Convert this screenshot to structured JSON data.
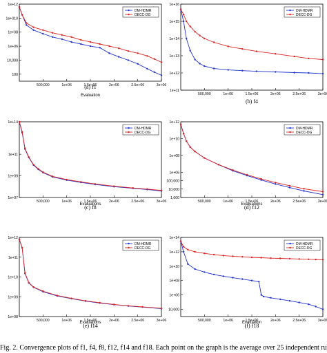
{
  "caption": "Fig. 2. Convergence plots of f1, f4, f8, f12, f14 and f18. Each point on the graph is the average over 25 independent runs",
  "colors": {
    "dm_hdmr": "#2233cc",
    "decc_dg": "#dd2222"
  },
  "chart_data": [
    {
      "type": "line",
      "sub_label": "(a) f1",
      "yscale": "log",
      "ylim": [
        10,
        1000000000000.0
      ],
      "yticks": [
        {
          "v": 1000000000000.0,
          "label": "1e+12"
        },
        {
          "v": 10000000000.0,
          "label": "1e+010"
        },
        {
          "v": 100000000.0,
          "label": "1e+08"
        },
        {
          "v": 1000000.0,
          "label": "1e+06"
        },
        {
          "v": 10000.0,
          "label": "10,000"
        },
        {
          "v": 100,
          "label": "100"
        }
      ],
      "xlim": [
        0,
        3000000
      ],
      "xticks": [
        {
          "v": 500000,
          "label": "500,000"
        },
        {
          "v": 1000000,
          "label": "1e+06"
        },
        {
          "v": 1500000,
          "label": "1.5e+06"
        },
        {
          "v": 2000000,
          "label": "2e+06"
        },
        {
          "v": 2500000,
          "label": "2.5e+06"
        },
        {
          "v": 3000000,
          "label": "3e+06"
        }
      ],
      "xlabel": "Evaluation",
      "legend_position": "top-right",
      "series": [
        {
          "name": "DM-HDMR",
          "x": [
            0,
            60000,
            150000,
            300000,
            500000,
            700000,
            900000,
            1100000,
            1300000,
            1500000,
            1700000,
            1900000,
            2100000,
            2300000,
            2500000,
            2700000,
            2850000,
            3000000
          ],
          "y": [
            400000000000.0,
            30000000000.0,
            1000000000.0,
            200000000.0,
            60000000.0,
            20000000.0,
            10000000.0,
            4000000.0,
            2000000.0,
            1000000.0,
            600000.0,
            100000.0,
            30000.0,
            10000.0,
            3000.0,
            600,
            200,
            70
          ]
        },
        {
          "name": "DECC-DG",
          "x": [
            0,
            60000,
            150000,
            300000,
            500000,
            700000,
            900000,
            1100000,
            1300000,
            1500000,
            1700000,
            1900000,
            2100000,
            2300000,
            2500000,
            2700000,
            2850000,
            3000000
          ],
          "y": [
            400000000000.0,
            30000000000.0,
            2000000000.0,
            500000000.0,
            200000000.0,
            80000000.0,
            40000000.0,
            20000000.0,
            8000000.0,
            4000000.0,
            2000000.0,
            1000000.0,
            500000.0,
            200000.0,
            100000.0,
            40000.0,
            15000.0,
            5000.0
          ]
        }
      ]
    },
    {
      "type": "line",
      "sub_label": "(b) f4",
      "yscale": "log",
      "ylim": [
        100000000000.0,
        1e+16
      ],
      "yticks": [
        {
          "v": 1e+16,
          "label": "1e+16"
        },
        {
          "v": 1000000000000000.0,
          "label": "1e+15"
        },
        {
          "v": 100000000000000.0,
          "label": "1e+14"
        },
        {
          "v": 10000000000000.0,
          "label": "1e+13"
        },
        {
          "v": 1000000000000.0,
          "label": "1e+12"
        },
        {
          "v": 100000000000.0,
          "label": "1e+11"
        }
      ],
      "xlim": [
        0,
        3000000
      ],
      "xticks": [
        {
          "v": 500000,
          "label": "500,000"
        },
        {
          "v": 1000000,
          "label": "1e+06"
        },
        {
          "v": 1500000,
          "label": "1.5e+06"
        },
        {
          "v": 2000000,
          "label": "2e+06"
        },
        {
          "v": 2500000,
          "label": "2.5e+06"
        },
        {
          "v": 3000000,
          "label": "3e+06"
        }
      ],
      "xlabel": "",
      "legend_position": "top-right",
      "series": [
        {
          "name": "DM-HDMR",
          "x": [
            0,
            60000,
            120000,
            200000,
            300000,
            400000,
            500000,
            700000,
            1000000,
            1300000,
            1600000,
            2000000,
            2400000,
            2700000,
            3000000
          ],
          "y": [
            5000000000000000.0,
            1000000000000000.0,
            100000000000000.0,
            20000000000000.0,
            6000000000000.0,
            3500000000000.0,
            2500000000000.0,
            1800000000000.0,
            1500000000000.0,
            1350000000000.0,
            1250000000000.0,
            1150000000000.0,
            1050000000000.0,
            1000000000000.0,
            900000000000.0
          ]
        },
        {
          "name": "DECC-DG",
          "x": [
            0,
            60000,
            120000,
            200000,
            300000,
            400000,
            500000,
            700000,
            1000000,
            1300000,
            1600000,
            2000000,
            2400000,
            2700000,
            3000000
          ],
          "y": [
            5000000000000000.0,
            2500000000000000.0,
            1000000000000000.0,
            500000000000000.0,
            250000000000000.0,
            150000000000000.0,
            100000000000000.0,
            60000000000000.0,
            35000000000000.0,
            25000000000000.0,
            18000000000000.0,
            13000000000000.0,
            9000000000000.0,
            7000000000000.0,
            6000000000000.0
          ]
        }
      ]
    },
    {
      "type": "line",
      "sub_label": "(c) f8",
      "yscale": "log",
      "ylim": [
        10000000.0,
        100000000000000.0
      ],
      "yticks": [
        {
          "v": 100000000000000.0,
          "label": "1e+14"
        },
        {
          "v": 100000000000.0,
          "label": "1e+11"
        },
        {
          "v": 1000000000.0,
          "label": "1e+09"
        },
        {
          "v": 10000000.0,
          "label": "1e+07"
        }
      ],
      "xlim": [
        0,
        3000000
      ],
      "xticks": [
        {
          "v": 500000,
          "label": "500,000"
        },
        {
          "v": 1000000,
          "label": "1e+06"
        },
        {
          "v": 1500000,
          "label": "1.5e+06"
        },
        {
          "v": 2000000,
          "label": "2e+06"
        },
        {
          "v": 2500000,
          "label": "2.5e+06"
        },
        {
          "v": 3000000,
          "label": "3e+06"
        }
      ],
      "xlabel": "Evaluations",
      "legend_position": "top-right",
      "series": [
        {
          "name": "DM-HDMR",
          "x": [
            0,
            60000,
            120000,
            200000,
            300000,
            400000,
            500000,
            700000,
            1000000,
            1300000,
            1600000,
            2000000,
            2400000,
            2700000,
            3000000
          ],
          "y": [
            100000000000000.0,
            10000000000000.0,
            300000000000.0,
            50000000000.0,
            10000000000.0,
            4000000000.0,
            2000000000.0,
            800000000.0,
            400000000.0,
            250000000.0,
            160000000.0,
            100000000.0,
            70000000.0,
            55000000.0,
            40000000.0
          ]
        },
        {
          "name": "DECC-DG",
          "x": [
            0,
            60000,
            120000,
            200000,
            300000,
            400000,
            500000,
            700000,
            1000000,
            1300000,
            1600000,
            2000000,
            2400000,
            2700000,
            3000000
          ],
          "y": [
            100000000000000.0,
            12000000000000.0,
            350000000000.0,
            55000000000.0,
            11000000000.0,
            4500000000.0,
            2200000000.0,
            900000000.0,
            450000000.0,
            280000000.0,
            180000000.0,
            110000000.0,
            75000000.0,
            60000000.0,
            45000000.0
          ]
        }
      ]
    },
    {
      "type": "line",
      "sub_label": "(d) f12",
      "yscale": "log",
      "ylim": [
        1000,
        1000000000000.0
      ],
      "yticks": [
        {
          "v": 1000000000000.0,
          "label": "1e+12"
        },
        {
          "v": 10000000000.0,
          "label": "1e+10"
        },
        {
          "v": 100000000.0,
          "label": "1e+08"
        },
        {
          "v": 1000000.0,
          "label": "1e+06"
        },
        {
          "v": 100000.0,
          "label": "100,000"
        },
        {
          "v": 10000.0,
          "label": "10,000"
        },
        {
          "v": 1000,
          "label": "1,000"
        }
      ],
      "xlim": [
        0,
        3000000
      ],
      "xticks": [
        {
          "v": 500000,
          "label": "500,000"
        },
        {
          "v": 1000000,
          "label": "1e+06"
        },
        {
          "v": 1500000,
          "label": "1.5e+06"
        },
        {
          "v": 2000000,
          "label": "2e+06"
        },
        {
          "v": 2500000,
          "label": "2.5e+06"
        },
        {
          "v": 3000000,
          "label": "3e+06"
        }
      ],
      "xlabel": "Evaluations",
      "legend_position": "top-right",
      "series": [
        {
          "name": "DM-HDMR",
          "x": [
            0,
            60000,
            120000,
            200000,
            300000,
            500000,
            800000,
            1100000,
            1400000,
            1700000,
            2000000,
            2300000,
            2600000,
            3000000
          ],
          "y": [
            500000000000.0,
            40000000000.0,
            5000000000.0,
            1000000000.0,
            300000000.0,
            50000000.0,
            8000000.0,
            1500000.0,
            400000.0,
            120000.0,
            40000.0,
            15000.0,
            6000.0,
            2200.0
          ]
        },
        {
          "name": "DECC-DG",
          "x": [
            0,
            60000,
            120000,
            200000,
            300000,
            500000,
            800000,
            1100000,
            1400000,
            1700000,
            2000000,
            2300000,
            2600000,
            3000000
          ],
          "y": [
            500000000000.0,
            40000000000.0,
            5000000000.0,
            1000000000.0,
            300000000.0,
            50000000.0,
            8000000.0,
            1800000.0,
            500000.0,
            160000.0,
            60000.0,
            25000.0,
            11000.0,
            5000.0
          ]
        }
      ]
    },
    {
      "type": "line",
      "sub_label": "(e) f14",
      "yscale": "log",
      "ylim": [
        100000000.0,
        1000000000000.0
      ],
      "yticks": [
        {
          "v": 1000000000000.0,
          "label": "1e+12"
        },
        {
          "v": 100000000000.0,
          "label": "1e+11"
        },
        {
          "v": 10000000000.0,
          "label": "1e+10"
        },
        {
          "v": 1000000000.0,
          "label": "1e+09"
        },
        {
          "v": 100000000.0,
          "label": "1e+08"
        }
      ],
      "xlim": [
        0,
        3000000
      ],
      "xticks": [
        {
          "v": 500000,
          "label": "500,000"
        },
        {
          "v": 1000000,
          "label": "1e+06"
        },
        {
          "v": 1500000,
          "label": "1.5e+06"
        },
        {
          "v": 2000000,
          "label": "2e+06"
        },
        {
          "v": 2500000,
          "label": "2.5e+06"
        },
        {
          "v": 3000000,
          "label": "3e+06"
        }
      ],
      "xlabel": "Evaluations",
      "legend_position": "top-right",
      "series": [
        {
          "name": "DM-HDMR",
          "x": [
            0,
            60000,
            120000,
            200000,
            300000,
            500000,
            800000,
            1100000,
            1400000,
            1700000,
            2000000,
            2300000,
            2600000,
            3000000
          ],
          "y": [
            800000000000.0,
            300000000000.0,
            15000000000.0,
            5000000000.0,
            3000000000.0,
            1800000000.0,
            1100000000.0,
            800000000.0,
            600000000.0,
            480000000.0,
            400000000.0,
            340000000.0,
            300000000.0,
            250000000.0
          ]
        },
        {
          "name": "DECC-DG",
          "x": [
            0,
            60000,
            120000,
            200000,
            300000,
            500000,
            800000,
            1100000,
            1400000,
            1700000,
            2000000,
            2300000,
            2600000,
            3000000
          ],
          "y": [
            800000000000.0,
            300000000000.0,
            16000000000.0,
            5200000000.0,
            3100000000.0,
            1900000000.0,
            1150000000.0,
            830000000.0,
            620000000.0,
            500000000.0,
            410000000.0,
            350000000.0,
            310000000.0,
            260000000.0
          ]
        }
      ]
    },
    {
      "type": "line",
      "sub_label": "(f) f18",
      "yscale": "log",
      "ylim": [
        1000,
        100000000000000.0
      ],
      "yticks": [
        {
          "v": 100000000000000.0,
          "label": "1e+14"
        },
        {
          "v": 1000000000000.0,
          "label": "1e+12"
        },
        {
          "v": 10000000000.0,
          "label": "1e+10"
        },
        {
          "v": 100000000.0,
          "label": "1e+08"
        },
        {
          "v": 1000000.0,
          "label": "1e+06"
        },
        {
          "v": 10000.0,
          "label": "10,000"
        }
      ],
      "xlim": [
        0,
        3000000
      ],
      "xticks": [
        {
          "v": 500000,
          "label": "500,000"
        },
        {
          "v": 1000000,
          "label": "1e+06"
        },
        {
          "v": 1500000,
          "label": "1.5e+06"
        },
        {
          "v": 2000000,
          "label": "2e+06"
        },
        {
          "v": 2500000,
          "label": "2.5e+06"
        },
        {
          "v": 3000000,
          "label": "3e+06"
        }
      ],
      "xlabel": "Evaluation",
      "legend_position": "top-right",
      "series": [
        {
          "name": "DM-HDMR",
          "x": [
            0,
            60000,
            150000,
            300000,
            500000,
            700000,
            900000,
            1100000,
            1300000,
            1500000,
            1650000,
            1700000,
            1750000,
            1900000,
            2100000,
            2300000,
            2500000,
            2700000,
            2850000,
            3000000
          ],
          "y": [
            30000000000000.0,
            1000000000000.0,
            20000000000.0,
            4000000000.0,
            1500000000.0,
            700000000.0,
            400000000.0,
            250000000.0,
            160000000.0,
            100000000.0,
            70000000.0,
            1000000.0,
            600000.0,
            400000.0,
            250000.0,
            150000.0,
            90000.0,
            50000.0,
            25000.0,
            10000.0
          ]
        },
        {
          "name": "DECC-DG",
          "x": [
            0,
            60000,
            150000,
            300000,
            500000,
            700000,
            900000,
            1100000,
            1300000,
            1500000,
            1700000,
            1900000,
            2100000,
            2300000,
            2500000,
            2700000,
            2850000,
            3000000
          ],
          "y": [
            30000000000000.0,
            5000000000000.0,
            2000000000000.0,
            1000000000000.0,
            600000000000.0,
            400000000000.0,
            300000000000.0,
            240000000000.0,
            200000000000.0,
            170000000000.0,
            150000000000.0,
            130000000000.0,
            120000000000.0,
            110000000000.0,
            100000000000.0,
            90000000000.0,
            85000000000.0,
            80000000000.0
          ]
        }
      ]
    }
  ]
}
